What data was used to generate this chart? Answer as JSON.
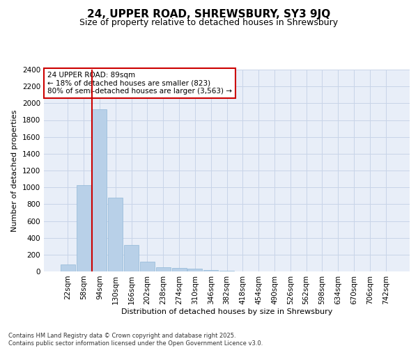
{
  "title1": "24, UPPER ROAD, SHREWSBURY, SY3 9JQ",
  "title2": "Size of property relative to detached houses in Shrewsbury",
  "xlabel": "Distribution of detached houses by size in Shrewsbury",
  "ylabel": "Number of detached properties",
  "bar_labels": [
    "22sqm",
    "58sqm",
    "94sqm",
    "130sqm",
    "166sqm",
    "202sqm",
    "238sqm",
    "274sqm",
    "310sqm",
    "346sqm",
    "382sqm",
    "418sqm",
    "454sqm",
    "490sqm",
    "526sqm",
    "562sqm",
    "598sqm",
    "634sqm",
    "670sqm",
    "706sqm",
    "742sqm"
  ],
  "bar_values": [
    85,
    1025,
    1925,
    880,
    315,
    115,
    48,
    38,
    30,
    15,
    5,
    0,
    0,
    0,
    0,
    0,
    0,
    0,
    0,
    0,
    0
  ],
  "bar_color": "#b8d0e8",
  "bar_edge_color": "#90b8d8",
  "vline_x": 1.5,
  "vline_color": "#cc0000",
  "annotation_text": "24 UPPER ROAD: 89sqm\n← 18% of detached houses are smaller (823)\n80% of semi-detached houses are larger (3,563) →",
  "annotation_box_color": "#ffffff",
  "annotation_box_edge_color": "#cc0000",
  "ylim": [
    0,
    2400
  ],
  "yticks": [
    0,
    200,
    400,
    600,
    800,
    1000,
    1200,
    1400,
    1600,
    1800,
    2000,
    2200,
    2400
  ],
  "grid_color": "#c8d4e8",
  "background_color": "#e8eef8",
  "footer_text": "Contains HM Land Registry data © Crown copyright and database right 2025.\nContains public sector information licensed under the Open Government Licence v3.0.",
  "title_fontsize": 11,
  "subtitle_fontsize": 9,
  "axis_label_fontsize": 8,
  "tick_fontsize": 7.5,
  "annotation_fontsize": 7.5,
  "footer_fontsize": 6
}
